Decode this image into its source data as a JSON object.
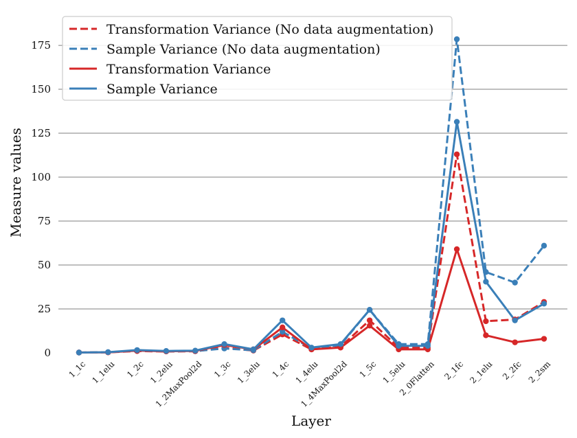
{
  "chart_data": {
    "type": "line",
    "title": "",
    "xlabel": "Layer",
    "ylabel": "Measure values",
    "categories": [
      "1_1c",
      "1_1elu",
      "1_2c",
      "1_2elu",
      "1_2MaxPool2d",
      "1_3c",
      "1_3elu",
      "1_4c",
      "1_4elu",
      "1_4MaxPool2d",
      "1_5c",
      "1_5elu",
      "2_0Flatten",
      "2_1fc",
      "2_1elu",
      "2_2fc",
      "2_2sm"
    ],
    "yticks": [
      "0",
      "25",
      "50",
      "75",
      "100",
      "125",
      "150",
      "175"
    ],
    "ylim": [
      0,
      193
    ],
    "grid": "horizontal",
    "legend_position": "top-left",
    "series": [
      {
        "name": "Transformation Variance (No data augmentation)",
        "color": "#d62728",
        "style": "dashed",
        "values": [
          0.2,
          0.3,
          1.0,
          0.8,
          0.9,
          3.0,
          1.3,
          10.5,
          2.0,
          3.5,
          18.5,
          3.0,
          3.0,
          113.0,
          18.0,
          19.0,
          29.0
        ]
      },
      {
        "name": "Sample Variance (No data augmentation)",
        "color": "#3a7fb8",
        "style": "dashed",
        "values": [
          0.2,
          0.4,
          1.2,
          0.9,
          1.0,
          2.5,
          1.5,
          12.0,
          2.5,
          4.5,
          24.5,
          5.0,
          5.0,
          178.5,
          46.0,
          40.0,
          61.0
        ]
      },
      {
        "name": "Transformation Variance",
        "color": "#d62728",
        "style": "solid",
        "values": [
          0.2,
          0.3,
          1.3,
          0.9,
          1.1,
          4.5,
          2.0,
          14.5,
          2.0,
          3.0,
          15.5,
          2.0,
          2.0,
          59.0,
          10.0,
          6.0,
          8.0
        ]
      },
      {
        "name": "Sample Variance",
        "color": "#3a7fb8",
        "style": "solid",
        "values": [
          0.2,
          0.4,
          1.6,
          1.1,
          1.3,
          5.0,
          2.0,
          18.5,
          3.0,
          5.0,
          24.5,
          4.0,
          4.0,
          131.5,
          40.5,
          18.5,
          28.0
        ]
      }
    ]
  }
}
